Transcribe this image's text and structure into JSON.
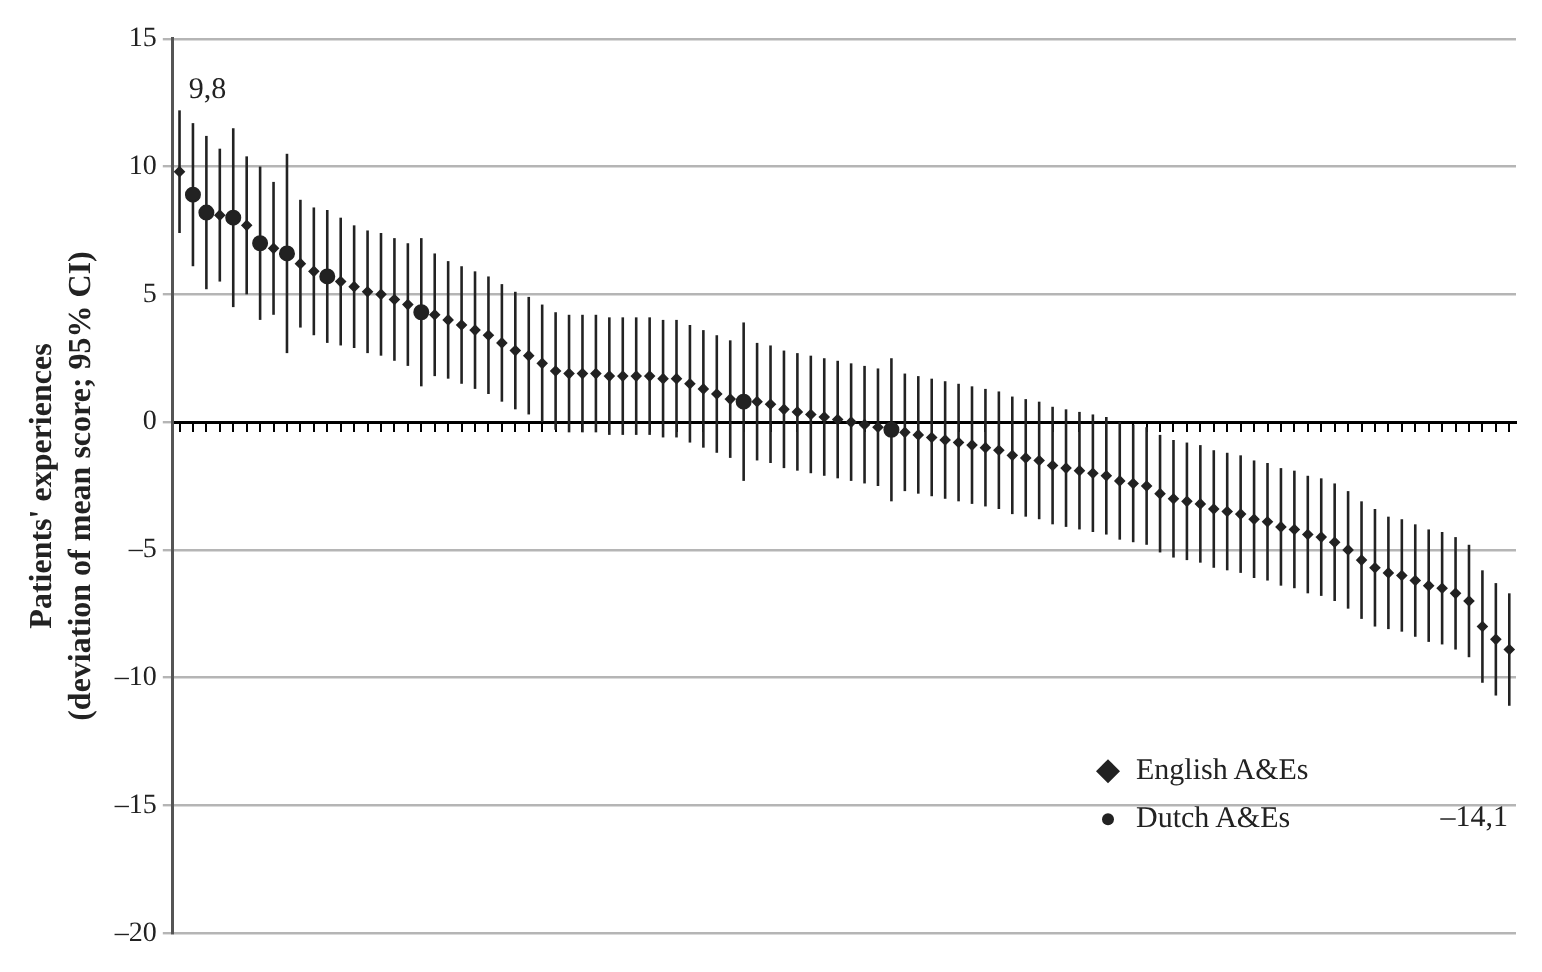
{
  "chart_data": {
    "type": "scatter",
    "ylabel": "Patients' experiences\n(deviation of mean score; 95% CI)",
    "categories": [
      null,
      null,
      null,
      null,
      null,
      null,
      null,
      null,
      null,
      null,
      null,
      null,
      null,
      null,
      null,
      null,
      null,
      null,
      null,
      null,
      null,
      null,
      null,
      null,
      null,
      null,
      null,
      null,
      null,
      null,
      null,
      null,
      null,
      null,
      null,
      null,
      null,
      null,
      null,
      null,
      null,
      null,
      null,
      null,
      null,
      null,
      null,
      null,
      null,
      null,
      null,
      null,
      null,
      null,
      null,
      null,
      null,
      null,
      null,
      null,
      null,
      null,
      null,
      null,
      null,
      null,
      null,
      null,
      null,
      null,
      null,
      null,
      null,
      null,
      null,
      null,
      null,
      null,
      null,
      null,
      null,
      null,
      null,
      null,
      null,
      null,
      null,
      null,
      null,
      null,
      null,
      null,
      null,
      null,
      null,
      null,
      null,
      null,
      null,
      null
    ],
    "series": [
      {
        "name": "English A&Es",
        "color": "#222222",
        "marker": "diamond",
        "values": [
          9.8,
          null,
          null,
          8.1,
          null,
          7.7,
          null,
          6.8,
          null,
          6.2,
          5.9,
          null,
          5.5,
          5.3,
          5.1,
          5.0,
          4.8,
          4.6,
          null,
          4.2,
          4.0,
          3.8,
          3.6,
          3.4,
          3.1,
          2.8,
          2.6,
          2.3,
          2.0,
          1.9,
          1.9,
          1.9,
          1.8,
          1.8,
          1.8,
          1.8,
          1.7,
          1.7,
          1.5,
          1.3,
          1.1,
          0.9,
          null,
          0.8,
          0.7,
          0.5,
          0.4,
          0.3,
          0.2,
          0.1,
          0.0,
          -0.1,
          -0.2,
          null,
          -0.4,
          -0.5,
          -0.6,
          -0.7,
          -0.8,
          -0.9,
          -1.0,
          -1.1,
          -1.3,
          -1.4,
          -1.5,
          -1.7,
          -1.8,
          -1.9,
          -2.0,
          -2.1,
          -2.3,
          -2.4,
          -2.5,
          -2.8,
          -3.0,
          -3.1,
          -3.2,
          -3.4,
          -3.5,
          -3.6,
          -3.8,
          -3.9,
          -4.1,
          -4.2,
          -4.4,
          -4.5,
          -4.7,
          -5.0,
          -5.4,
          -5.7,
          -5.9,
          -6.0,
          -6.2,
          -6.4,
          -6.5,
          -6.7,
          -7.0,
          -8.0,
          -8.5,
          -8.9
        ],
        "errors": [
          2.4,
          null,
          null,
          2.6,
          null,
          2.7,
          null,
          2.6,
          null,
          2.5,
          2.5,
          null,
          2.5,
          2.4,
          2.4,
          2.4,
          2.4,
          2.4,
          null,
          2.4,
          2.3,
          2.3,
          2.3,
          2.3,
          2.3,
          2.3,
          2.3,
          2.3,
          2.3,
          2.3,
          2.3,
          2.3,
          2.3,
          2.3,
          2.3,
          2.3,
          2.3,
          2.3,
          2.3,
          2.3,
          2.3,
          2.3,
          null,
          2.3,
          2.3,
          2.3,
          2.3,
          2.3,
          2.3,
          2.3,
          2.3,
          2.3,
          2.3,
          null,
          2.3,
          2.3,
          2.3,
          2.3,
          2.3,
          2.3,
          2.3,
          2.3,
          2.3,
          2.3,
          2.3,
          2.3,
          2.3,
          2.3,
          2.3,
          2.3,
          2.3,
          2.3,
          2.3,
          2.3,
          2.3,
          2.3,
          2.3,
          2.3,
          2.3,
          2.3,
          2.3,
          2.3,
          2.3,
          2.3,
          2.3,
          2.3,
          2.3,
          2.3,
          2.3,
          2.3,
          2.2,
          2.2,
          2.2,
          2.2,
          2.2,
          2.2,
          2.2,
          2.2,
          2.2,
          2.2
        ]
      },
      {
        "name": "Dutch A&Es",
        "color": "#222222",
        "marker": "circle",
        "values": [
          null,
          8.9,
          8.2,
          null,
          8.0,
          null,
          7.0,
          null,
          6.6,
          null,
          null,
          5.7,
          null,
          null,
          null,
          null,
          null,
          null,
          4.3,
          null,
          null,
          null,
          null,
          null,
          null,
          null,
          null,
          null,
          null,
          null,
          null,
          null,
          null,
          null,
          null,
          null,
          null,
          null,
          null,
          null,
          null,
          null,
          0.8,
          null,
          null,
          null,
          null,
          null,
          null,
          null,
          null,
          null,
          null,
          -0.3,
          null,
          null,
          null,
          null,
          null,
          null,
          null,
          null,
          null,
          null,
          null,
          null,
          null,
          null,
          null,
          null,
          null,
          null,
          null,
          null,
          null,
          null,
          null,
          null,
          null,
          null,
          null,
          null,
          null,
          null,
          null,
          null,
          null,
          null,
          null,
          null,
          null,
          null,
          null,
          null,
          null,
          null,
          null,
          null,
          null,
          null
        ],
        "errors": [
          null,
          2.8,
          3.0,
          null,
          3.5,
          null,
          3.0,
          null,
          3.9,
          null,
          null,
          2.6,
          null,
          null,
          null,
          null,
          null,
          null,
          2.9,
          null,
          null,
          null,
          null,
          null,
          null,
          null,
          null,
          null,
          null,
          null,
          null,
          null,
          null,
          null,
          null,
          null,
          null,
          null,
          null,
          null,
          null,
          null,
          3.1,
          null,
          null,
          null,
          null,
          null,
          null,
          null,
          null,
          null,
          null,
          2.8,
          null,
          null,
          null,
          null,
          null,
          null,
          null,
          null,
          null,
          null,
          null,
          null,
          null,
          null,
          null,
          null,
          null,
          null,
          null,
          null,
          null,
          null,
          null,
          null,
          null,
          null,
          null,
          null,
          null,
          null,
          null,
          null,
          null,
          null,
          null,
          null,
          null,
          null,
          null,
          null,
          null,
          null,
          null,
          null,
          null,
          null
        ]
      }
    ],
    "ylim": [
      -20,
      15
    ],
    "yticks": [
      {
        "value": -20,
        "label": "–20"
      },
      {
        "value": -15,
        "label": "–15"
      },
      {
        "value": -10,
        "label": "–10"
      },
      {
        "value": -5,
        "label": "–5"
      },
      0,
      5,
      10,
      15
    ],
    "grid": "y",
    "legend": "bottom right",
    "tick_labels": "y",
    "annotations": [
      "9,8",
      "–14,1"
    ]
  }
}
